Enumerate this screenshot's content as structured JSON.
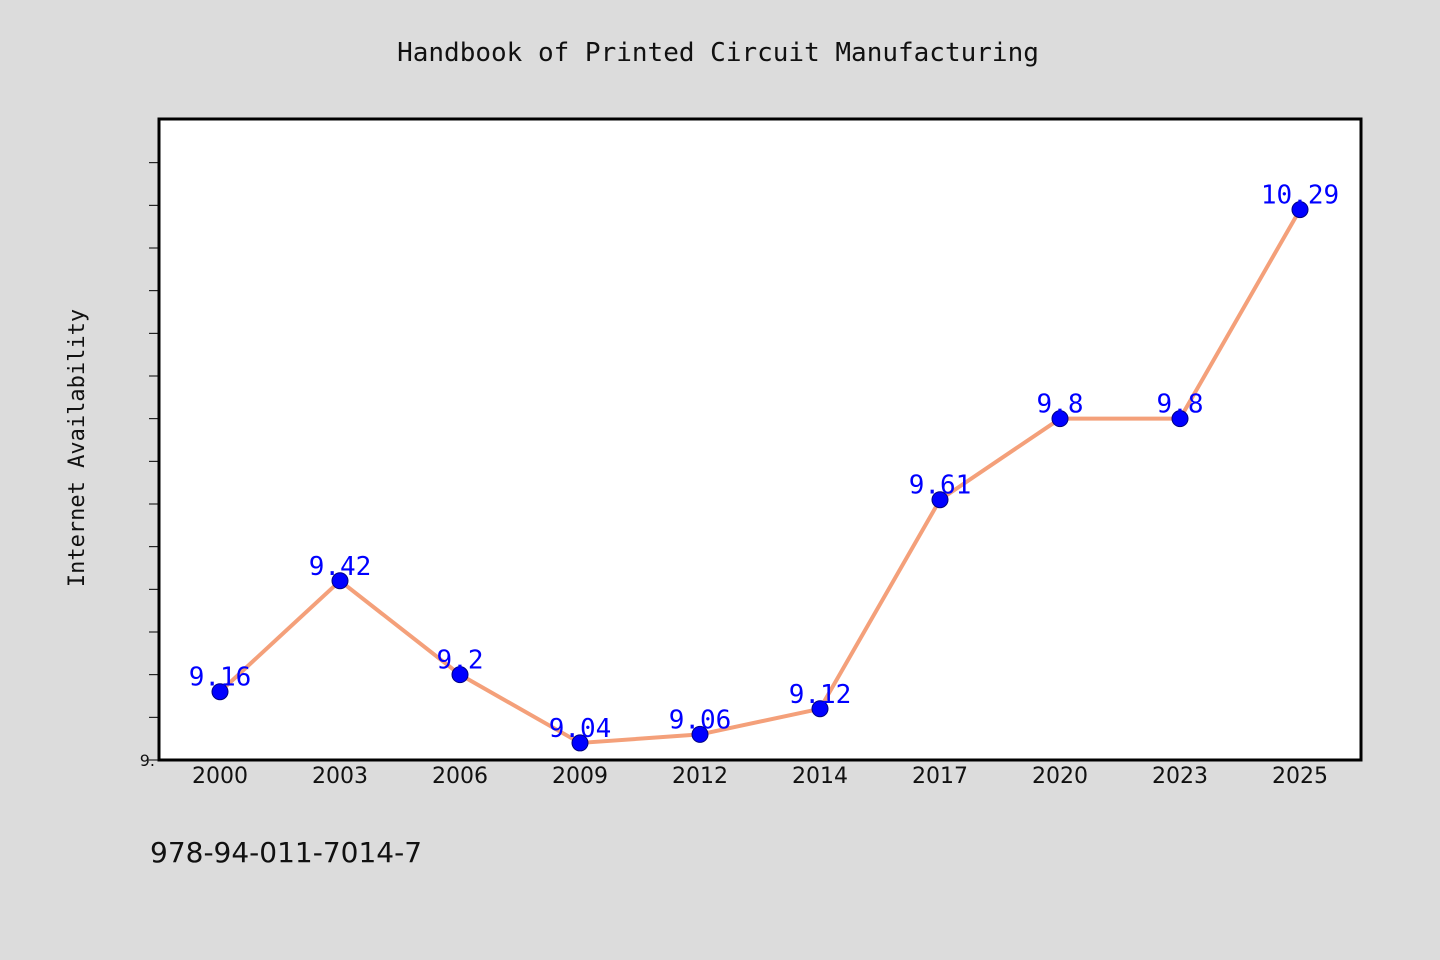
{
  "chart_data": {
    "type": "line",
    "title": "Handbook of Printed Circuit Manufacturing",
    "xlabel": "",
    "ylabel": "Internet Availability",
    "categories": [
      "2000",
      "2003",
      "2006",
      "2009",
      "2012",
      "2014",
      "2017",
      "2020",
      "2023",
      "2025"
    ],
    "series": [
      {
        "values": [
          9.16,
          9.42,
          9.2,
          9.04,
          9.06,
          9.12,
          9.61,
          9.8,
          9.8,
          10.29
        ],
        "labels": [
          "9.16",
          "9.42",
          "9.2",
          "9.04",
          "9.06",
          "9.12",
          "9.61",
          "9.8",
          "9.8",
          "10.29"
        ]
      }
    ],
    "ylim": [
      9.0,
      10.5
    ],
    "yticks_labeled": [
      {
        "value": 9.0,
        "label": "9."
      }
    ],
    "grid": false,
    "legend": "none",
    "colors": {
      "line": "#f4a07a",
      "marker": "#0000ff",
      "marker_edge": "#000080",
      "label": "#0000ff",
      "background": "#dcdcdc",
      "plot_background": "#ffffff",
      "frame": "#000000"
    }
  },
  "footnote": "978-94-011-7014-7"
}
